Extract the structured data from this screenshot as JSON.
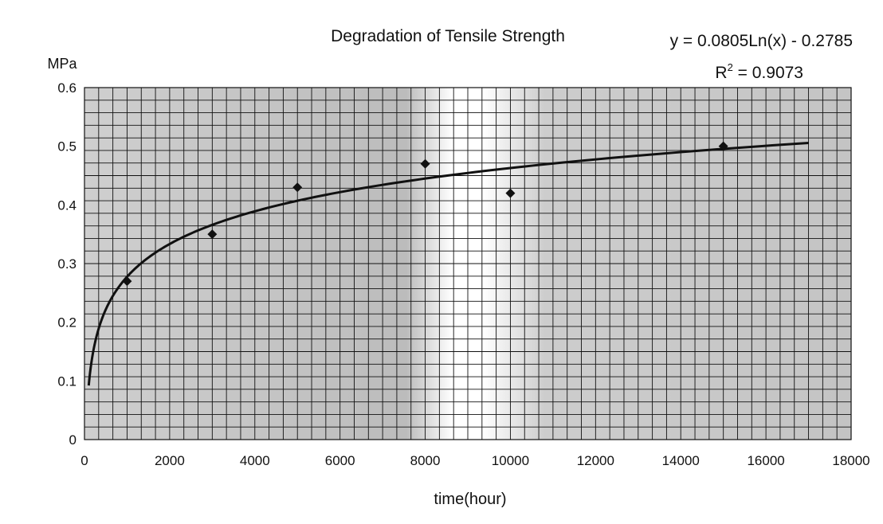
{
  "chart_data": {
    "type": "scatter",
    "title": "Degradation of Tensile Strength",
    "xlabel": "time(hour)",
    "ylabel": "MPa",
    "xlim": [
      0,
      18000
    ],
    "ylim": [
      0,
      0.6
    ],
    "x_ticks": [
      "0",
      "2000",
      "4000",
      "6000",
      "8000",
      "10000",
      "12000",
      "14000",
      "16000",
      "18000"
    ],
    "y_ticks": [
      "0",
      "0.1",
      "0.2",
      "0.3",
      "0.4",
      "0.5",
      "0.6"
    ],
    "grid": true,
    "series": [
      {
        "x": [
          1000,
          3000,
          5000,
          8000,
          10000,
          15000
        ],
        "y": [
          0.27,
          0.35,
          0.43,
          0.47,
          0.42,
          0.5
        ],
        "marker": "diamond"
      }
    ],
    "trendline": {
      "type": "logarithmic",
      "a": 0.0805,
      "b": -0.2785,
      "x_range": [
        100,
        17000
      ],
      "equation": "y = 0.0805Ln(x) - 0.2785",
      "r2_prefix": "R",
      "r2_sup": "2",
      "r2_value": " = 0.9073"
    },
    "colors": {
      "plot_bg": "#c8c8c8",
      "plot_bg_light": "#e6e6e6",
      "grid": "#111111",
      "marker": "#111111",
      "line": "#111111"
    }
  }
}
